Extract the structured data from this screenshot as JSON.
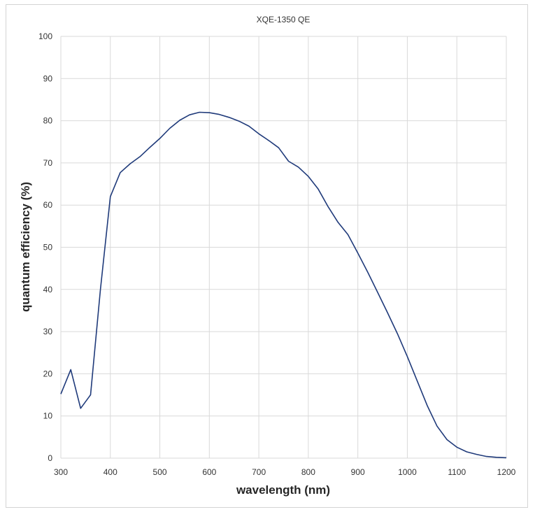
{
  "chart_data": {
    "type": "line",
    "title": "XQE-1350 QE",
    "xlabel": "wavelength (nm)",
    "ylabel": "quantum efficiency (%)",
    "xlim": [
      300,
      1200
    ],
    "ylim": [
      0,
      100
    ],
    "x_ticks": [
      300,
      400,
      500,
      600,
      700,
      800,
      900,
      1000,
      1100,
      1200
    ],
    "y_ticks": [
      0,
      10,
      20,
      30,
      40,
      50,
      60,
      70,
      80,
      90,
      100
    ],
    "grid": true,
    "legend": "none",
    "series": [
      {
        "color": "#1f3a7a",
        "x": [
          300,
          320,
          340,
          360,
          380,
          400,
          420,
          440,
          460,
          480,
          500,
          520,
          540,
          560,
          580,
          600,
          620,
          640,
          660,
          680,
          700,
          720,
          740,
          760,
          780,
          800,
          820,
          840,
          860,
          880,
          900,
          920,
          940,
          960,
          980,
          1000,
          1020,
          1040,
          1060,
          1080,
          1100,
          1120,
          1140,
          1160,
          1180,
          1200
        ],
        "y": [
          15.2,
          21.0,
          11.8,
          15.0,
          40.0,
          62.0,
          67.7,
          69.8,
          71.5,
          73.7,
          75.8,
          78.2,
          80.1,
          81.4,
          82.0,
          81.9,
          81.5,
          80.8,
          79.9,
          78.7,
          76.9,
          75.3,
          73.6,
          70.4,
          69.0,
          66.8,
          63.8,
          59.6,
          55.9,
          53.0,
          48.6,
          44.1,
          39.3,
          34.5,
          29.5,
          24.1,
          18.3,
          12.5,
          7.6,
          4.4,
          2.6,
          1.5,
          0.9,
          0.4,
          0.2,
          0.1
        ]
      }
    ]
  }
}
